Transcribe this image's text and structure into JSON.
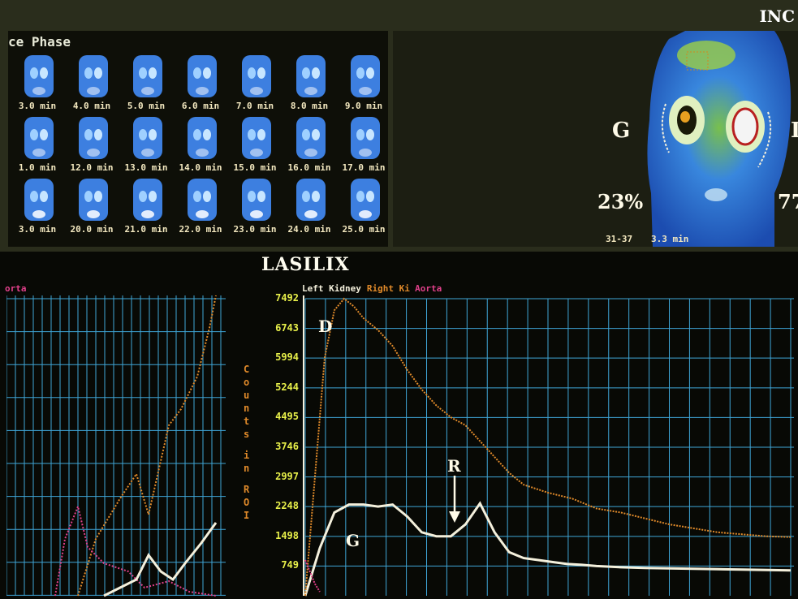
{
  "top_left": {
    "title": "ce Phase",
    "frames": [
      "3.0 min",
      "4.0 min",
      "5.0 min",
      "6.0 min",
      "7.0 min",
      "8.0 min",
      "9.0 min",
      "1.0 min",
      "12.0 min",
      "13.0 min",
      "14.0 min",
      "15.0 min",
      "16.0 min",
      "17.0 min",
      "3.0 min",
      "20.0 min",
      "21.0 min",
      "22.0 min",
      "23.0 min",
      "24.0 min",
      "25.0 min"
    ]
  },
  "top_right": {
    "title": "INC",
    "left_label": "G",
    "right_label": "I",
    "left_percent": "23%",
    "right_percent": "77",
    "footer_frames": "31-37",
    "footer_time": "3.3 min"
  },
  "bottom": {
    "title": "LASILIX",
    "left_partial_legend": "orta",
    "legend": [
      {
        "label": "Left Kidney",
        "color": "#f4f0dc"
      },
      {
        "label": "Right Ki",
        "color": "#e08a2a"
      },
      {
        "label": "Aorta",
        "color": "#e0408a"
      }
    ],
    "y_axis_label": "Counts in ROI",
    "annotations": {
      "peak": "D",
      "left_curve": "G",
      "rise": "R"
    }
  },
  "chart_data": {
    "type": "line",
    "title": "LASILIX",
    "ylabel": "Counts in ROI",
    "xlabel": "",
    "yticks": [
      749,
      1498,
      2248,
      2997,
      3746,
      4495,
      5244,
      5994,
      6743,
      7492
    ],
    "ylim": [
      0,
      7492
    ],
    "xlim": [
      0,
      1
    ],
    "grid": true,
    "legend_position": "top-left",
    "series": [
      {
        "name": "Left Kidney",
        "color": "#f4f0dc",
        "x": [
          0.0,
          0.03,
          0.06,
          0.09,
          0.12,
          0.15,
          0.18,
          0.21,
          0.24,
          0.27,
          0.3,
          0.33,
          0.36,
          0.39,
          0.42,
          0.45,
          0.48,
          0.51,
          0.54,
          0.57,
          0.6,
          0.65,
          0.7,
          0.75,
          0.8,
          0.85,
          0.9,
          0.95,
          1.0
        ],
        "y": [
          0,
          1200,
          2100,
          2300,
          2300,
          2250,
          2300,
          2000,
          1600,
          1500,
          1500,
          1800,
          2330,
          1600,
          1100,
          950,
          900,
          850,
          800,
          780,
          750,
          720,
          700,
          690,
          680,
          670,
          660,
          650,
          640
        ]
      },
      {
        "name": "Right Ki",
        "color": "#e08a2a",
        "x": [
          0.0,
          0.02,
          0.04,
          0.06,
          0.08,
          0.1,
          0.12,
          0.15,
          0.18,
          0.21,
          0.24,
          0.27,
          0.3,
          0.33,
          0.36,
          0.39,
          0.42,
          0.45,
          0.5,
          0.55,
          0.6,
          0.65,
          0.7,
          0.75,
          0.8,
          0.85,
          0.9,
          0.95,
          1.0
        ],
        "y": [
          0,
          3000,
          6000,
          7200,
          7492,
          7300,
          7000,
          6700,
          6300,
          5700,
          5200,
          4800,
          4500,
          4300,
          3900,
          3500,
          3100,
          2800,
          2600,
          2450,
          2200,
          2100,
          1950,
          1800,
          1700,
          1600,
          1550,
          1500,
          1480
        ]
      },
      {
        "name": "Aorta",
        "color": "#e0408a",
        "x": [
          0.0,
          0.01,
          0.02,
          0.03
        ],
        "y": [
          900,
          600,
          300,
          100
        ]
      }
    ]
  }
}
